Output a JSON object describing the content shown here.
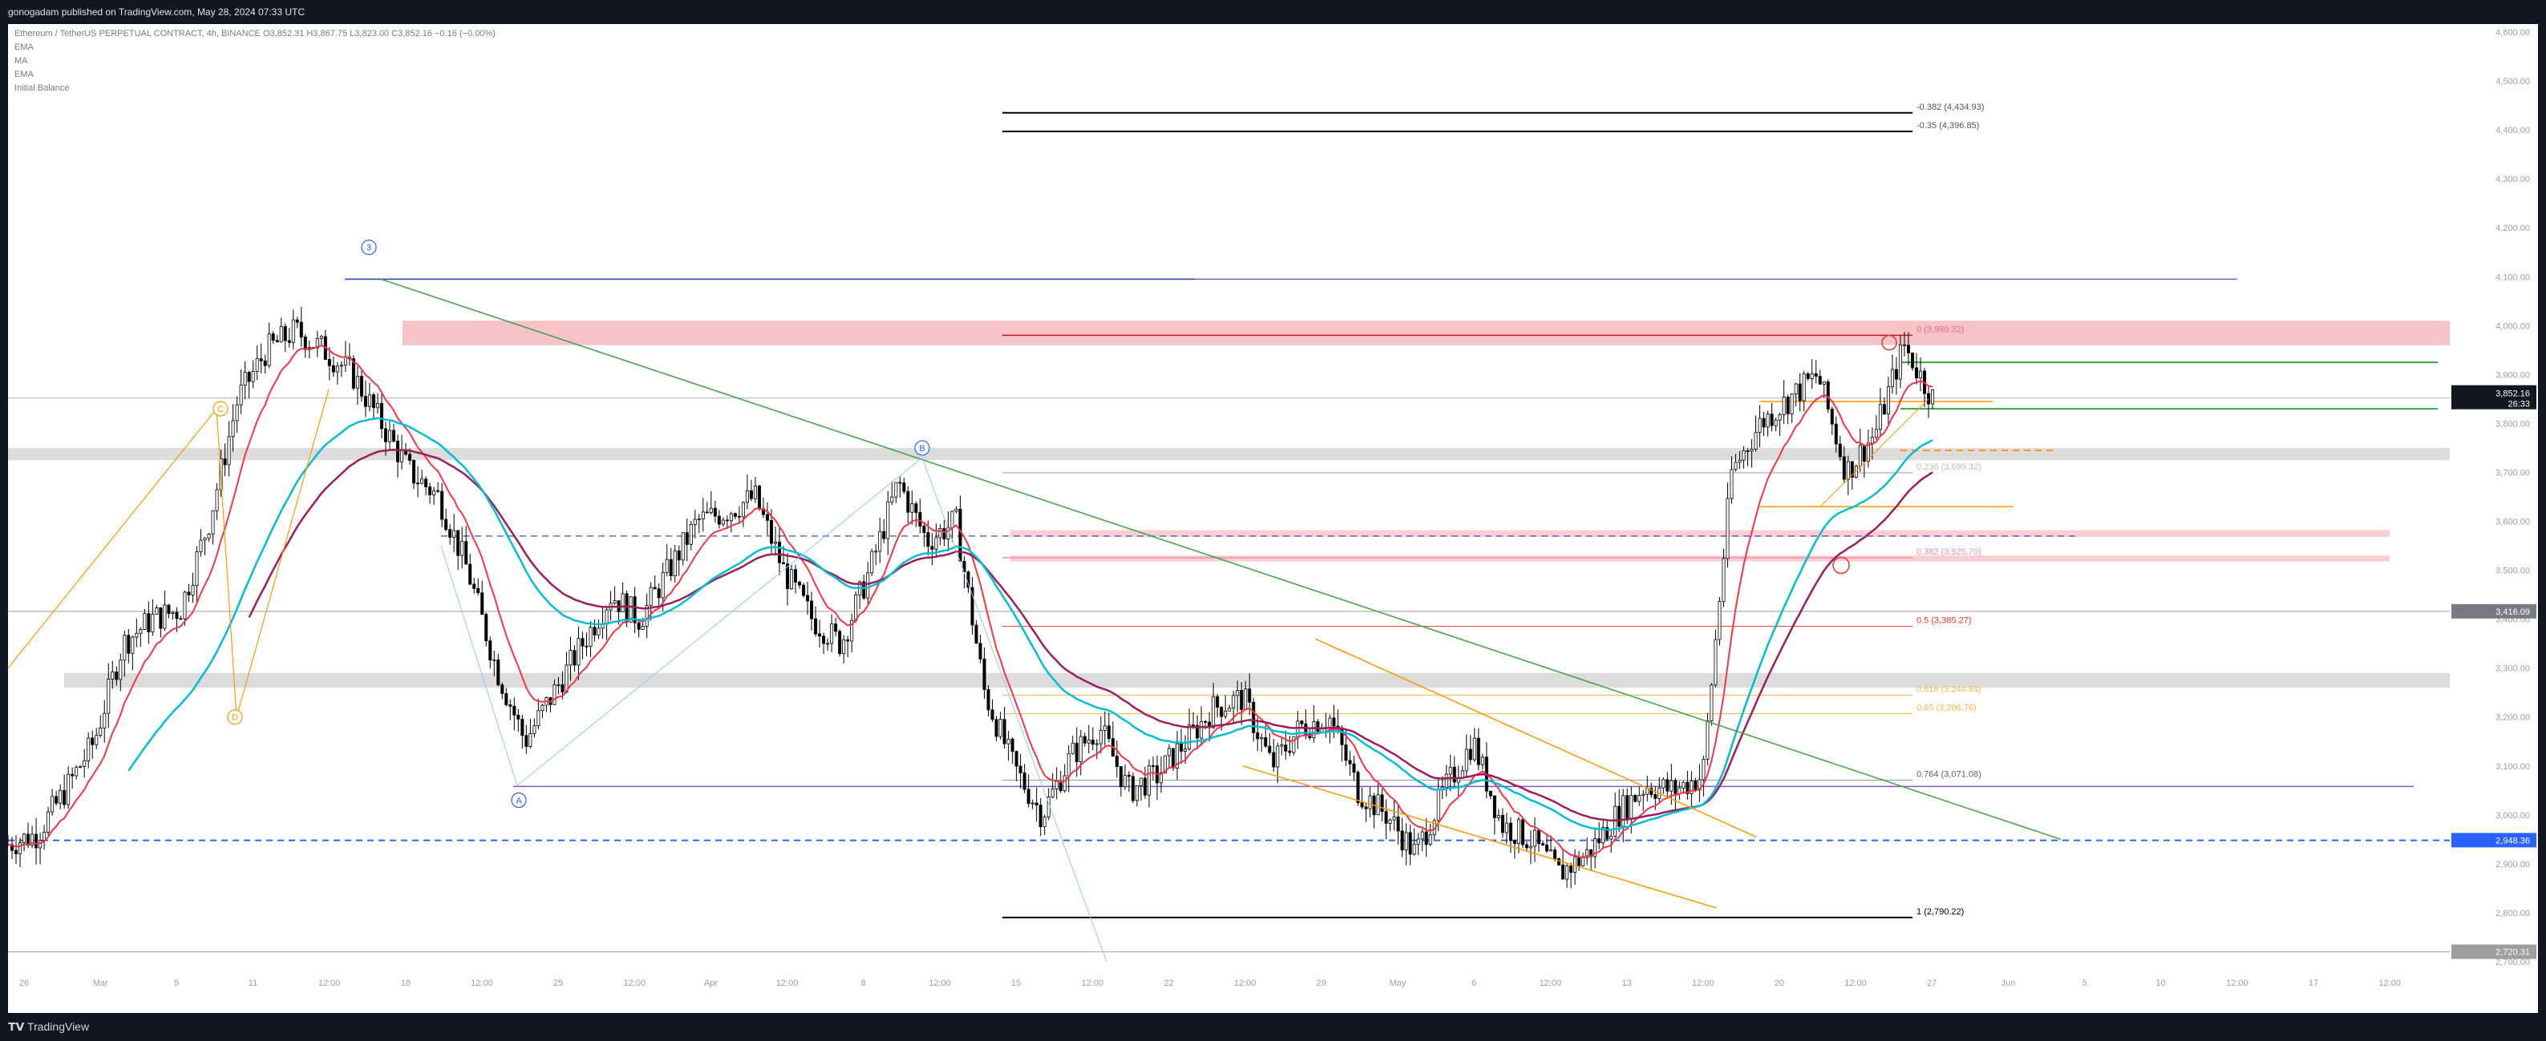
{
  "header": {
    "published": "gonogadam published on TradingView.com, May 28, 2024 07:33 UTC"
  },
  "legend": {
    "symbol": "Ethereum / TetherUS PERPETUAL CONTRACT, 4h, BINANCE",
    "ohlc": "O3,852.31 H3,867.75 L3,823.00 C3,852.16 −0.16 (−0.00%)",
    "indicators": [
      "EMA",
      "MA",
      "EMA",
      "Initial Balance"
    ]
  },
  "footer": {
    "brand": "TradingView"
  },
  "colors": {
    "bg": "#ffffff",
    "up": "#ffffff",
    "down": "#000000",
    "ema_fast": "#f23645",
    "ema_mid": "#9c1f5d",
    "ema_slow": "#00bcd4",
    "fib": "#f23645",
    "elliott": "#2962ff",
    "wedge": "#ff9800",
    "trend": "#43a047"
  },
  "chart_data": {
    "type": "candlestick",
    "symbol": "ETHUSDT.P",
    "interval": "4h",
    "ylim": [
      2700,
      4700
    ],
    "y_ticks": [
      "4,600.00",
      "4,500.00",
      "4,400.00",
      "4,300.00",
      "4,200.00",
      "4,100.00",
      "4,000.00",
      "3,900.00",
      "3,800.00",
      "3,700.00",
      "3,600.00",
      "3,500.00",
      "3,400.00",
      "3,300.00",
      "3,200.00",
      "3,100.00",
      "3,000.00",
      "2,900.00",
      "2,800.00",
      "2,700.00"
    ],
    "x_ticks": [
      "26",
      "Mar",
      "5",
      "11",
      "12:00",
      "18",
      "12:00",
      "25",
      "12:00",
      "Apr",
      "12:00",
      "8",
      "12:00",
      "15",
      "12:00",
      "22",
      "12:00",
      "29",
      "May",
      "6",
      "12:00",
      "13",
      "12:00",
      "20",
      "12:00",
      "27",
      "Jun",
      "5",
      "10",
      "12:00",
      "17",
      "12:00"
    ],
    "price_series_close_approx": [
      2940,
      2960,
      3050,
      3150,
      3350,
      3400,
      3420,
      3600,
      3850,
      3950,
      3990,
      3950,
      3900,
      3800,
      3700,
      3650,
      3500,
      3300,
      3150,
      3250,
      3350,
      3450,
      3400,
      3500,
      3600,
      3620,
      3650,
      3500,
      3400,
      3350,
      3500,
      3680,
      3560,
      3600,
      3250,
      3100,
      3000,
      3120,
      3180,
      3050,
      3080,
      3150,
      3220,
      3240,
      3100,
      3180,
      3200,
      3050,
      3000,
      2920,
      3050,
      3150,
      2980,
      2950,
      2880,
      2920,
      3000,
      3060,
      3050,
      3080,
      3700,
      3800,
      3850,
      3900,
      3700,
      3780,
      3960,
      3852
    ],
    "last_price": "3,852.16",
    "countdown": "26:33",
    "price_labels": [
      "3,416.09",
      "2,948.36",
      "2,720.31"
    ],
    "fib_levels": [
      {
        "label": "-0.382 (4,434.93)",
        "value": 4434.93
      },
      {
        "label": "-0.35 (4,396.85)",
        "value": 4396.85
      },
      {
        "label": "0 (3,980.32)",
        "value": 3980.32
      },
      {
        "label": "0.236 (3,699.32)",
        "value": 3699.32
      },
      {
        "label": "0.382 (3,525.70)",
        "value": 3525.7
      },
      {
        "label": "0.5 (3,385.27)",
        "value": 3385.27
      },
      {
        "label": "0.618 (3,244.84)",
        "value": 3244.84
      },
      {
        "label": "0.65 (3,206.76)",
        "value": 3206.76
      },
      {
        "label": "0.764 (3,071.08)",
        "value": 3071.08
      },
      {
        "label": "1 (2,790.22)",
        "value": 2790.22
      }
    ],
    "wave_labels": [
      "3",
      "C",
      "D",
      "A",
      "B"
    ],
    "grid": false
  }
}
